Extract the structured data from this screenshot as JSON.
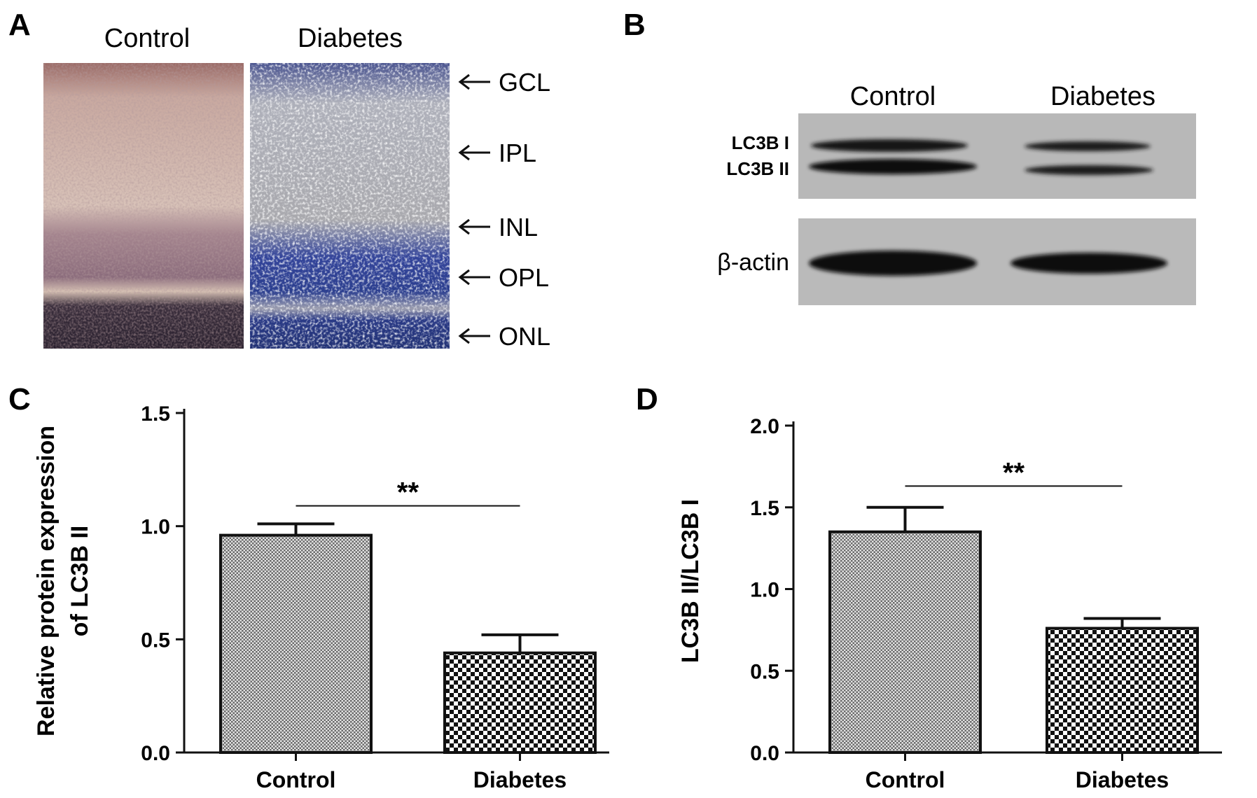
{
  "panel_a": {
    "letter": "A",
    "columns": [
      "Control",
      "Diabetes"
    ],
    "layers": [
      "GCL",
      "IPL",
      "INL",
      "OPL",
      "ONL"
    ],
    "colors": {
      "control_tint": "#c9a9a0",
      "control_dark": "#2b2230",
      "diabetes_tint": "#b9b9bd",
      "diabetes_blue": "#2c3f8f"
    }
  },
  "panel_b": {
    "letter": "B",
    "columns": [
      "Control",
      "Diabetes"
    ],
    "bands": [
      "LC3B I",
      "LC3B II"
    ],
    "loading_control": "β-actin"
  },
  "chart_data": [
    {
      "panel": "C",
      "type": "bar",
      "categories": [
        "Control",
        "Diabetes"
      ],
      "values": [
        0.96,
        0.44
      ],
      "errors": [
        0.05,
        0.08
      ],
      "ylabel_lines": [
        "Relative protein expression",
        "of LC3B II"
      ],
      "ylim": [
        0,
        1.5
      ],
      "yticks": [
        "0.0",
        "0.5",
        "1.0",
        "1.5"
      ],
      "ytick_values": [
        0,
        0.5,
        1.0,
        1.5
      ],
      "significance": "**",
      "patterns": [
        "fine-hatch",
        "checker"
      ]
    },
    {
      "panel": "D",
      "type": "bar",
      "categories": [
        "Control",
        "Diabetes"
      ],
      "values": [
        1.35,
        0.76
      ],
      "errors": [
        0.15,
        0.06
      ],
      "ylabel_lines": [
        "LC3B II/LC3B I"
      ],
      "ylim": [
        0,
        2.0
      ],
      "yticks": [
        "0.0",
        "0.5",
        "1.0",
        "1.5",
        "2.0"
      ],
      "ytick_values": [
        0,
        0.5,
        1.0,
        1.5,
        2.0
      ],
      "significance": "**",
      "patterns": [
        "fine-hatch",
        "checker"
      ]
    }
  ]
}
